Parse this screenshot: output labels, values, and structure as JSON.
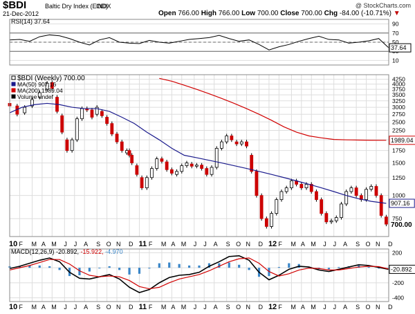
{
  "header": {
    "symbol": "$BDI",
    "name": "Baltic Dry Index (EOD)",
    "exchange": "INDX",
    "date": "21-Dec-2012",
    "open_label": "Open",
    "open": "766.00",
    "high_label": "High",
    "high": "766.00",
    "low_label": "Low",
    "low": "700.00",
    "close_label": "Close",
    "close": "700.00",
    "chg_label": "Chg",
    "chg": "-84.00 (-10.71%)",
    "chg_arrow": "▼",
    "watermark": "@ StockCharts.com"
  },
  "colors": {
    "up_candle": "#ffffff",
    "down_candle": "#cc0000",
    "candle_outline": "#000000",
    "ma50": "#1a1a8c",
    "ma200": "#d10000",
    "macd_line": "#000000",
    "signal_line": "#d10000",
    "histogram": "#3a86c8",
    "rsi_line": "#000000",
    "rsi_fill": "#8b4a3a",
    "grid": "#dddddd"
  },
  "chart_data": [
    {
      "type": "line",
      "title": "RSI(14)",
      "legend": "RSI(14) 37.64",
      "current_label": "37.64",
      "ylim": [
        0,
        100
      ],
      "yticks": [
        "90",
        "70",
        "50",
        "30",
        "10"
      ],
      "reference_lines": [
        70,
        50,
        30
      ],
      "x": [
        0,
        4,
        8,
        12,
        16,
        20,
        24,
        28,
        32,
        36,
        40,
        44,
        48,
        52,
        56,
        60,
        64,
        68,
        72,
        76,
        80,
        84,
        88,
        92,
        96,
        100,
        104,
        108,
        112,
        116,
        120,
        124,
        128,
        132,
        136,
        140,
        144,
        148,
        152
      ],
      "values": [
        55,
        56,
        52,
        62,
        66,
        64,
        58,
        50,
        44,
        55,
        60,
        50,
        48,
        47,
        54,
        50,
        48,
        52,
        56,
        58,
        60,
        65,
        58,
        52,
        55,
        45,
        33,
        40,
        45,
        52,
        58,
        63,
        56,
        55,
        48,
        50,
        53,
        58,
        37.64
      ]
    },
    {
      "type": "candlestick",
      "title": "$BDI (Weekly) 700.00",
      "log_scale": true,
      "ylim": [
        600,
        4500
      ],
      "yticks": [
        "4250",
        "4000",
        "3750",
        "3500",
        "3250",
        "3000",
        "2750",
        "2500",
        "2250",
        "2000",
        "1750",
        "1500",
        "1250",
        "1000",
        "750"
      ],
      "x_labels": [
        "10",
        "F",
        "M",
        "A",
        "M",
        "J",
        "J",
        "A",
        "S",
        "O",
        "N",
        "D",
        "11",
        "F",
        "M",
        "A",
        "M",
        "J",
        "J",
        "A",
        "S",
        "O",
        "N",
        "D",
        "12",
        "F",
        "M",
        "A",
        "M",
        "J",
        "J",
        "A",
        "S",
        "O",
        "N",
        "D"
      ],
      "x_label_week": [
        0,
        4,
        9,
        13,
        17,
        22,
        26,
        30,
        35,
        39,
        43,
        48,
        52,
        56,
        61,
        65,
        69,
        74,
        78,
        82,
        87,
        91,
        95,
        100,
        104,
        108,
        113,
        117,
        121,
        126,
        130,
        134,
        139,
        143,
        147,
        152
      ],
      "year_labels": [
        "10",
        "11",
        "12"
      ],
      "legend": [
        "$BDI (Weekly) 700.00",
        "MA(50) 907.16",
        "MA(200) 1989.04",
        "Volume undef"
      ],
      "current_labels": {
        "ma200": "1989.04",
        "ma50": "907.16",
        "close": "700.00"
      },
      "candles": [
        {
          "x": 0,
          "o": 3150,
          "c": 3050
        },
        {
          "x": 3,
          "o": 3050,
          "c": 2750
        },
        {
          "x": 6,
          "o": 2800,
          "c": 3000
        },
        {
          "x": 9,
          "o": 3050,
          "c": 3300
        },
        {
          "x": 12,
          "o": 3400,
          "c": 3600
        },
        {
          "x": 15,
          "o": 3750,
          "c": 4050
        },
        {
          "x": 17,
          "o": 4080,
          "c": 3800
        },
        {
          "x": 19,
          "o": 3400,
          "c": 2850
        },
        {
          "x": 21,
          "o": 2700,
          "c": 2200
        },
        {
          "x": 23,
          "o": 2000,
          "c": 1750
        },
        {
          "x": 25,
          "o": 1750,
          "c": 2000
        },
        {
          "x": 27,
          "o": 2000,
          "c": 2600
        },
        {
          "x": 29,
          "o": 2600,
          "c": 2950
        },
        {
          "x": 31,
          "o": 2950,
          "c": 2900
        },
        {
          "x": 33,
          "o": 2900,
          "c": 2650
        },
        {
          "x": 35,
          "o": 2750,
          "c": 3000
        },
        {
          "x": 37,
          "o": 2850,
          "c": 2700
        },
        {
          "x": 39,
          "o": 2650,
          "c": 2450
        },
        {
          "x": 41,
          "o": 2450,
          "c": 2150
        },
        {
          "x": 43,
          "o": 2150,
          "c": 1950
        },
        {
          "x": 45,
          "o": 1950,
          "c": 1750
        },
        {
          "x": 47,
          "o": 1700,
          "c": 1750
        },
        {
          "x": 48,
          "o": 1750,
          "c": 1650
        },
        {
          "x": 49,
          "o": 1650,
          "c": 1500
        },
        {
          "x": 51,
          "o": 1450,
          "c": 1300
        },
        {
          "x": 53,
          "o": 1250,
          "c": 1100
        },
        {
          "x": 55,
          "o": 1100,
          "c": 1250
        },
        {
          "x": 57,
          "o": 1250,
          "c": 1400
        },
        {
          "x": 59,
          "o": 1400,
          "c": 1580
        },
        {
          "x": 61,
          "o": 1580,
          "c": 1530
        },
        {
          "x": 63,
          "o": 1520,
          "c": 1380
        },
        {
          "x": 65,
          "o": 1380,
          "c": 1320
        },
        {
          "x": 67,
          "o": 1300,
          "c": 1350
        },
        {
          "x": 69,
          "o": 1350,
          "c": 1450
        },
        {
          "x": 71,
          "o": 1450,
          "c": 1500
        },
        {
          "x": 73,
          "o": 1480,
          "c": 1440
        },
        {
          "x": 75,
          "o": 1440,
          "c": 1460
        },
        {
          "x": 77,
          "o": 1460,
          "c": 1400
        },
        {
          "x": 79,
          "o": 1400,
          "c": 1300
        },
        {
          "x": 81,
          "o": 1300,
          "c": 1420
        },
        {
          "x": 83,
          "o": 1420,
          "c": 1800
        },
        {
          "x": 85,
          "o": 1800,
          "c": 1950
        },
        {
          "x": 87,
          "o": 1950,
          "c": 2100
        },
        {
          "x": 89,
          "o": 2100,
          "c": 2000
        },
        {
          "x": 91,
          "o": 1950,
          "c": 1900
        },
        {
          "x": 93,
          "o": 1900,
          "c": 1950
        },
        {
          "x": 95,
          "o": 1950,
          "c": 1850
        },
        {
          "x": 97,
          "o": 1650,
          "c": 1350
        },
        {
          "x": 99,
          "o": 1350,
          "c": 1000
        },
        {
          "x": 101,
          "o": 1000,
          "c": 750
        },
        {
          "x": 103,
          "o": 750,
          "c": 680
        },
        {
          "x": 105,
          "o": 680,
          "c": 800
        },
        {
          "x": 107,
          "o": 800,
          "c": 950
        },
        {
          "x": 109,
          "o": 950,
          "c": 1050
        },
        {
          "x": 111,
          "o": 1050,
          "c": 1100
        },
        {
          "x": 113,
          "o": 1100,
          "c": 1200
        },
        {
          "x": 115,
          "o": 1200,
          "c": 1150
        },
        {
          "x": 117,
          "o": 1150,
          "c": 1100
        },
        {
          "x": 119,
          "o": 1100,
          "c": 1150
        },
        {
          "x": 121,
          "o": 1150,
          "c": 1050
        },
        {
          "x": 123,
          "o": 1050,
          "c": 950
        },
        {
          "x": 125,
          "o": 950,
          "c": 800
        },
        {
          "x": 127,
          "o": 800,
          "c": 720
        },
        {
          "x": 129,
          "o": 720,
          "c": 730
        },
        {
          "x": 131,
          "o": 730,
          "c": 760
        },
        {
          "x": 133,
          "o": 760,
          "c": 900
        },
        {
          "x": 135,
          "o": 900,
          "c": 1050
        },
        {
          "x": 137,
          "o": 1050,
          "c": 1100
        },
        {
          "x": 139,
          "o": 1100,
          "c": 1000
        },
        {
          "x": 141,
          "o": 1000,
          "c": 950
        },
        {
          "x": 143,
          "o": 950,
          "c": 1080
        },
        {
          "x": 145,
          "o": 1080,
          "c": 1120
        },
        {
          "x": 147,
          "o": 1120,
          "c": 1000
        },
        {
          "x": 149,
          "o": 1000,
          "c": 780
        },
        {
          "x": 151,
          "o": 766,
          "c": 700
        }
      ],
      "ma50": {
        "x": [
          0,
          5,
          10,
          15,
          20,
          25,
          30,
          35,
          40,
          45,
          50,
          55,
          60,
          65,
          70,
          75,
          80,
          85,
          90,
          95,
          100,
          105,
          110,
          115,
          120,
          125,
          130,
          135,
          140,
          145,
          151
        ],
        "values": [
          2800,
          3000,
          3100,
          3150,
          3100,
          3000,
          2950,
          2950,
          2850,
          2650,
          2450,
          2200,
          2000,
          1800,
          1650,
          1600,
          1550,
          1500,
          1450,
          1400,
          1350,
          1300,
          1250,
          1200,
          1150,
          1100,
          1050,
          1000,
          960,
          930,
          907.16
        ]
      },
      "ma200": {
        "x": [
          60,
          65,
          70,
          75,
          80,
          85,
          90,
          95,
          100,
          105,
          110,
          115,
          120,
          125,
          130,
          135,
          140,
          145,
          151
        ],
        "values": [
          4300,
          4150,
          3950,
          3750,
          3550,
          3350,
          3150,
          2950,
          2750,
          2550,
          2350,
          2200,
          2100,
          2050,
          2010,
          2000,
          1995,
          1990,
          1989.04
        ]
      }
    },
    {
      "type": "line",
      "title": "MACD(12,26,9)",
      "legend": {
        "name": "MACD(12,26,9)",
        "macd": "-20.892",
        "signal": "-15.922",
        "hist": "-4.970"
      },
      "current_label": "-20.892",
      "ylim": [
        -450,
        250
      ],
      "yticks": [
        "200",
        "0",
        "-200",
        "-400"
      ],
      "x_labels": [
        "10",
        "F",
        "M",
        "A",
        "M",
        "J",
        "J",
        "A",
        "S",
        "O",
        "N",
        "D",
        "11",
        "F",
        "M",
        "A",
        "M",
        "J",
        "J",
        "A",
        "S",
        "O",
        "N",
        "D",
        "12",
        "F",
        "M",
        "A",
        "M",
        "J",
        "J",
        "A",
        "S",
        "O",
        "N",
        "D"
      ],
      "x": [
        0,
        4,
        8,
        12,
        16,
        20,
        24,
        28,
        32,
        36,
        40,
        44,
        48,
        52,
        56,
        60,
        64,
        68,
        72,
        76,
        80,
        84,
        88,
        92,
        96,
        100,
        104,
        108,
        112,
        116,
        120,
        124,
        128,
        132,
        136,
        140,
        144,
        148,
        152
      ],
      "series": [
        {
          "name": "MACD",
          "values": [
            -10,
            20,
            60,
            100,
            130,
            80,
            -60,
            -140,
            -150,
            -120,
            -90,
            -150,
            -260,
            -330,
            -290,
            -200,
            -130,
            -100,
            -90,
            -60,
            20,
            80,
            150,
            160,
            100,
            -60,
            -160,
            -100,
            -20,
            20,
            10,
            -30,
            -50,
            -20,
            10,
            40,
            30,
            5,
            -20.892
          ]
        },
        {
          "name": "Signal",
          "values": [
            -30,
            0,
            30,
            70,
            110,
            110,
            50,
            -40,
            -100,
            -120,
            -110,
            -120,
            -170,
            -250,
            -280,
            -260,
            -200,
            -150,
            -120,
            -90,
            -40,
            20,
            80,
            120,
            130,
            60,
            -50,
            -110,
            -80,
            -30,
            -5,
            -10,
            -30,
            -30,
            -10,
            10,
            20,
            15,
            -15.922
          ]
        }
      ],
      "histogram": [
        20,
        20,
        30,
        30,
        20,
        -30,
        -110,
        -100,
        -50,
        0,
        20,
        -30,
        -90,
        -80,
        -10,
        60,
        70,
        50,
        30,
        30,
        60,
        60,
        70,
        40,
        -30,
        -120,
        -110,
        10,
        60,
        50,
        15,
        -20,
        -20,
        10,
        20,
        30,
        10,
        -10,
        -4.97
      ]
    }
  ]
}
